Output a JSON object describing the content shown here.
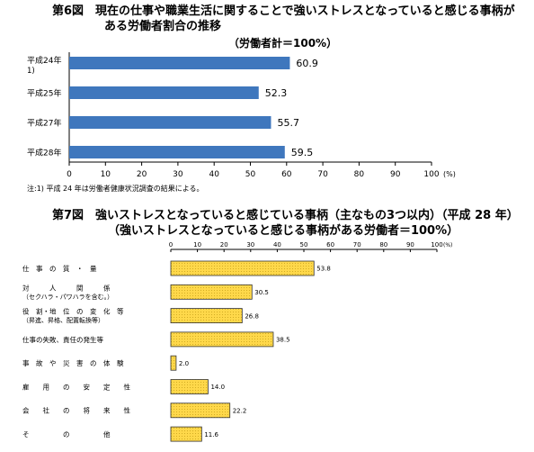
{
  "fig6": {
    "title_line1": "第6図　現在の仕事や職業生活に関することで強いストレスとなっていると感じる事柄が",
    "title_line2": "ある労働者割合の推移",
    "subtitle": "（労働者計＝100%）",
    "note": "注:1) 平成 24 年は労働者健康状況調査の結果による。"
  },
  "fig7": {
    "title_line1": "第7図　強いストレスとなっていると感じている事柄（主なもの3つ以内）（平成 28 年）",
    "title_line2": "（強いストレスとなっていると感じる事柄がある労働者＝100%）"
  },
  "chart_data": [
    {
      "type": "bar",
      "orientation": "horizontal",
      "title": "第6図　現在の仕事や職業生活に関することで強いストレスとなっていると感じる事柄がある労働者割合の推移",
      "categories": [
        "平成24年\n1)",
        "平成25年",
        "平成27年",
        "平成28年"
      ],
      "category_lines": [
        [
          "平成24年",
          "1)"
        ],
        [
          "平成25年"
        ],
        [
          "平成27年"
        ],
        [
          "平成28年"
        ]
      ],
      "values": [
        60.9,
        52.3,
        55.7,
        59.5
      ],
      "value_labels": [
        "60.9",
        "52.3",
        "55.7",
        "59.5"
      ],
      "xlim": [
        0,
        100
      ],
      "xticks": [
        "0",
        "10",
        "20",
        "30",
        "40",
        "50",
        "60",
        "70",
        "80",
        "90",
        "100"
      ],
      "unit_label": "(%)",
      "bar_color": "#3f77bd",
      "grid": false
    },
    {
      "type": "bar",
      "orientation": "horizontal",
      "title": "第7図　強いストレスとなっていると感じている事柄（主なもの3つ以内）（平成 28 年）",
      "categories": [
        "仕事の質・量",
        "対人関係（セクハラ・パワハラを含む。）",
        "役割・地位の変化等（昇進、昇格、配置転換等）",
        "仕事の失敗、責任の発生等",
        "事故や災害の体験",
        "雇用の安定性",
        "会社の将来性",
        "その他"
      ],
      "category_lines": [
        [
          "仕　事　の　質　・　量"
        ],
        [
          "対　　　人　　　関　　　係",
          "（セクハラ・パワハラを含む。）"
        ],
        [
          "役　割・地　位　の　変　化　等",
          "（昇進、昇格、配置転換等）"
        ],
        [
          "仕事の失敗、責任の発生等"
        ],
        [
          "事　故　や　災　害　の　体　験"
        ],
        [
          "雇　　用　　の　　安　　定　　性"
        ],
        [
          "会　　社　　の　　将　　来　　性"
        ],
        [
          "そ　　　　　の　　　　　他"
        ]
      ],
      "values": [
        53.8,
        30.5,
        26.8,
        38.5,
        2.0,
        14.0,
        22.2,
        11.6
      ],
      "value_labels": [
        "53.8",
        "30.5",
        "26.8",
        "38.5",
        "2.0",
        "14.0",
        "22.2",
        "11.6"
      ],
      "xlim": [
        0,
        100
      ],
      "xticks": [
        "0",
        "10",
        "20",
        "30",
        "40",
        "50",
        "60",
        "70",
        "80",
        "90",
        "100"
      ],
      "unit_label": "(%)",
      "bar_color": "#ffd84a",
      "grid": false
    }
  ]
}
